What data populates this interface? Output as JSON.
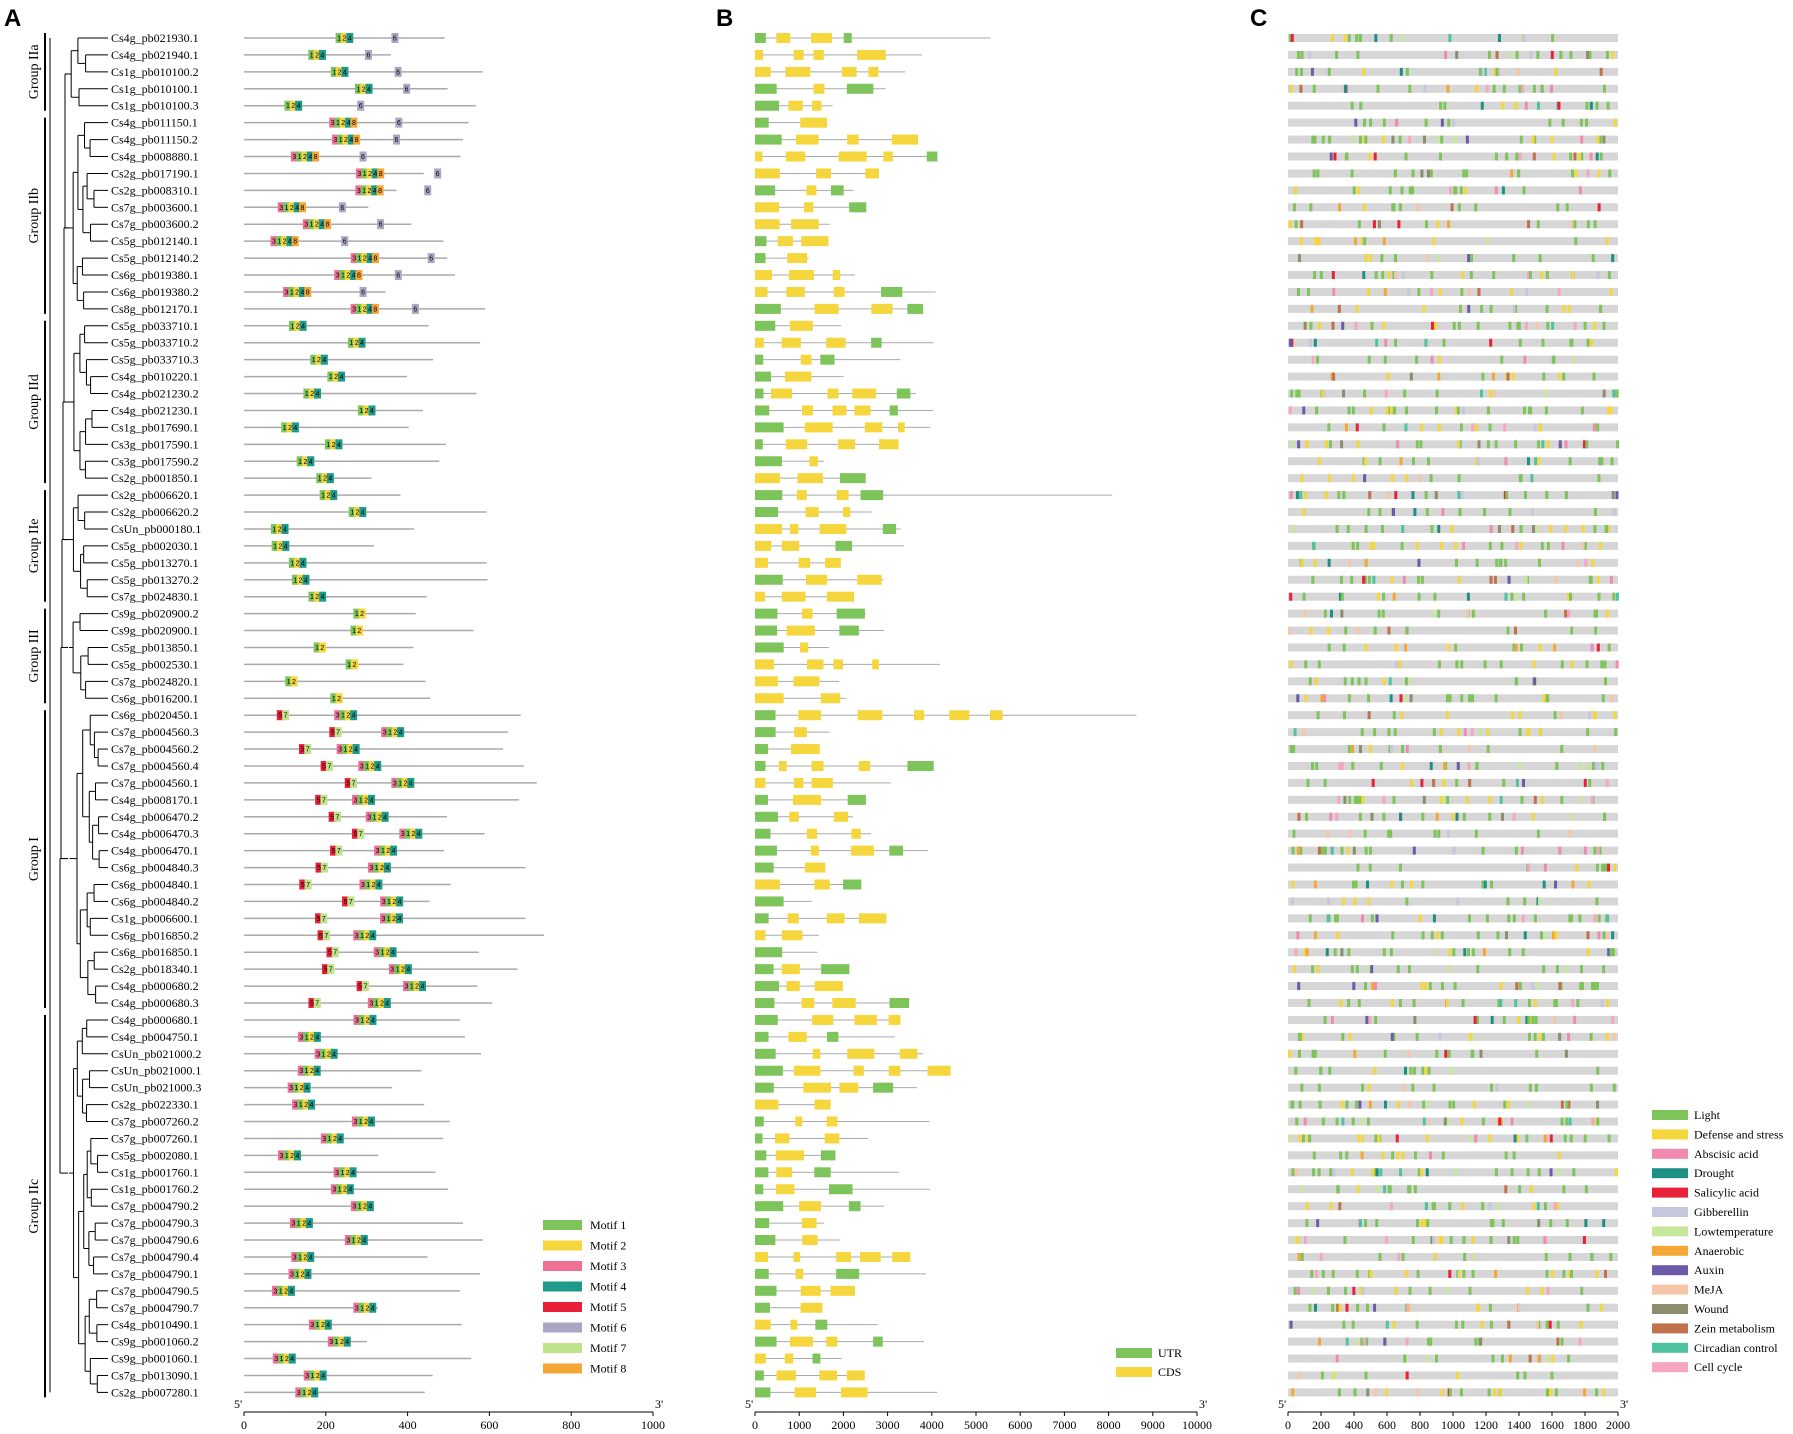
{
  "panels": {
    "A": "A",
    "B": "B",
    "C": "C"
  },
  "groups": [
    {
      "label": "Group IIa",
      "start": 0,
      "end": 4
    },
    {
      "label": "Group IIb",
      "start": 5,
      "end": 16
    },
    {
      "label": "Group IId",
      "start": 17,
      "end": 26
    },
    {
      "label": "Group IIe",
      "start": 27,
      "end": 33
    },
    {
      "label": "Group III",
      "start": 34,
      "end": 39
    },
    {
      "label": "Group I",
      "start": 40,
      "end": 57
    },
    {
      "label": "Group IIc",
      "start": 58,
      "end": 80
    }
  ],
  "genes": [
    "Cs4g_pb021930.1",
    "Cs4g_pb021940.1",
    "Cs1g_pb010100.2",
    "Cs1g_pb010100.1",
    "Cs1g_pb010100.3",
    "Cs4g_pb011150.1",
    "Cs4g_pb011150.2",
    "Cs4g_pb008880.1",
    "Cs2g_pb017190.1",
    "Cs2g_pb008310.1",
    "Cs7g_pb003600.1",
    "Cs7g_pb003600.2",
    "Cs5g_pb012140.1",
    "Cs5g_pb012140.2",
    "Cs6g_pb019380.1",
    "Cs6g_pb019380.2",
    "Cs8g_pb012170.1",
    "Cs5g_pb033710.1",
    "Cs5g_pb033710.2",
    "Cs5g_pb033710.3",
    "Cs4g_pb010220.1",
    "Cs4g_pb021230.2",
    "Cs4g_pb021230.1",
    "Cs1g_pb017690.1",
    "Cs3g_pb017590.1",
    "Cs3g_pb017590.2",
    "Cs2g_pb001850.1",
    "Cs2g_pb006620.1",
    "Cs2g_pb006620.2",
    "CsUn_pb000180.1",
    "Cs5g_pb002030.1",
    "Cs5g_pb013270.1",
    "Cs5g_pb013270.2",
    "Cs7g_pb024830.1",
    "Cs9g_pb020900.2",
    "Cs9g_pb020900.1",
    "Cs5g_pb013850.1",
    "Cs5g_pb002530.1",
    "Cs7g_pb024820.1",
    "Cs6g_pb016200.1",
    "Cs6g_pb020450.1",
    "Cs7g_pb004560.3",
    "Cs7g_pb004560.2",
    "Cs7g_pb004560.4",
    "Cs7g_pb004560.1",
    "Cs4g_pb008170.1",
    "Cs4g_pb006470.2",
    "Cs4g_pb006470.3",
    "Cs4g_pb006470.1",
    "Cs6g_pb004840.3",
    "Cs6g_pb004840.1",
    "Cs6g_pb004840.2",
    "Cs1g_pb006600.1",
    "Cs6g_pb016850.2",
    "Cs6g_pb016850.1",
    "Cs2g_pb018340.1",
    "Cs4g_pb000680.2",
    "Cs4g_pb000680.3",
    "Cs4g_pb000680.1",
    "Cs4g_pb004750.1",
    "CsUn_pb021000.2",
    "CsUn_pb021000.1",
    "CsUn_pb021000.3",
    "Cs2g_pb022330.1",
    "Cs7g_pb007260.2",
    "Cs7g_pb007260.1",
    "Cs5g_pb002080.1",
    "Cs1g_pb001760.1",
    "Cs1g_pb001760.2",
    "Cs7g_pb004790.2",
    "Cs7g_pb004790.3",
    "Cs7g_pb004790.6",
    "Cs7g_pb004790.4",
    "Cs7g_pb004790.1",
    "Cs7g_pb004790.5",
    "Cs7g_pb004790.7",
    "Cs4g_pb010490.1",
    "Cs9g_pb001060.2",
    "Cs9g_pb001060.1",
    "Cs7g_pb013090.1",
    "Cs2g_pb007280.1"
  ],
  "motif_legend": [
    {
      "label": "Motif 1",
      "color": "#7dc45a"
    },
    {
      "label": "Motif 2",
      "color": "#f5d63c"
    },
    {
      "label": "Motif 3",
      "color": "#ef6f95"
    },
    {
      "label": "Motif 4",
      "color": "#1e9a8a"
    },
    {
      "label": "Motif 5",
      "color": "#e8203a"
    },
    {
      "label": "Motif 6",
      "color": "#a9a6c4"
    },
    {
      "label": "Motif 7",
      "color": "#bfe38a"
    },
    {
      "label": "Motif 8",
      "color": "#f4a636"
    }
  ],
  "structure_legend": [
    {
      "label": "UTR",
      "color": "#7dc45a"
    },
    {
      "label": "CDS",
      "color": "#f5d63c"
    }
  ],
  "cis_legend": [
    {
      "label": "Light",
      "color": "#7dc45a"
    },
    {
      "label": "Defense and stress",
      "color": "#f5d63c"
    },
    {
      "label": "Abscisic acid",
      "color": "#f28ab0"
    },
    {
      "label": "Drought",
      "color": "#1e8f84"
    },
    {
      "label": "Salicylic acid",
      "color": "#e8203a"
    },
    {
      "label": "Gibberellin",
      "color": "#c6c6dc"
    },
    {
      "label": "Lowtemperature",
      "color": "#c7e89a"
    },
    {
      "label": "Anaerobic",
      "color": "#f4a636"
    },
    {
      "label": "Auxin",
      "color": "#6a5aa8"
    },
    {
      "label": "MeJA",
      "color": "#f6c6a8"
    },
    {
      "label": "Wound",
      "color": "#8c8c6e"
    },
    {
      "label": "Zein metabolism",
      "color": "#c0704a"
    },
    {
      "label": "Circadian control",
      "color": "#4fc2a0"
    },
    {
      "label": "Cell cycle",
      "color": "#f6a6c0"
    }
  ],
  "axisA": {
    "ticks": [
      "0",
      "200",
      "400",
      "600",
      "800",
      "1000"
    ],
    "left_end": "5'",
    "right_end": "3'"
  },
  "axisB": {
    "ticks": [
      "0",
      "1000",
      "2000",
      "3000",
      "4000",
      "5000",
      "6000",
      "7000",
      "8000",
      "9000",
      "10000"
    ],
    "left_end": "5'",
    "right_end": "3'"
  },
  "axisC": {
    "ticks": [
      "0",
      "200",
      "400",
      "600",
      "800",
      "1000",
      "1200",
      "1400",
      "1600",
      "1800",
      "2000"
    ],
    "left_end": "5'",
    "right_end": "3'"
  }
}
